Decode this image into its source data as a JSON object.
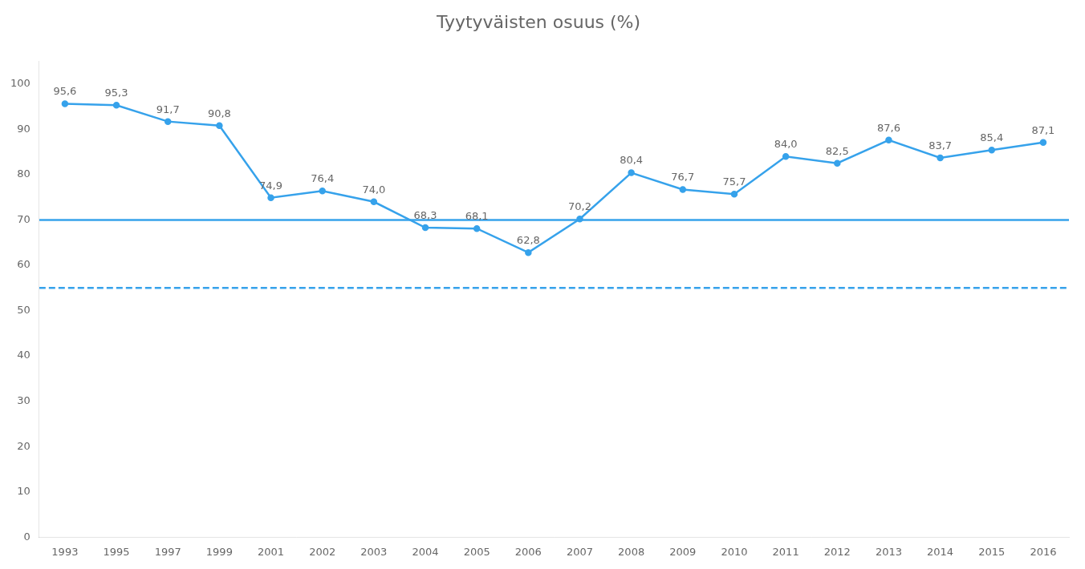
{
  "chart_data": {
    "type": "line",
    "title": "Tyytyväisten osuus (%)",
    "categories": [
      "1993",
      "1995",
      "1997",
      "1999",
      "2001",
      "2002",
      "2003",
      "2004",
      "2005",
      "2006",
      "2007",
      "2008",
      "2009",
      "2010",
      "2011",
      "2012",
      "2013",
      "2014",
      "2015",
      "2016"
    ],
    "values": [
      95.6,
      95.3,
      91.7,
      90.8,
      74.9,
      76.4,
      74.0,
      68.3,
      68.1,
      62.8,
      70.2,
      80.4,
      76.7,
      75.7,
      84.0,
      82.5,
      87.6,
      83.7,
      85.4,
      87.1
    ],
    "value_labels": [
      "95,6",
      "95,3",
      "91,7",
      "90,8",
      "74,9",
      "76,4",
      "74,0",
      "68,3",
      "68,1",
      "62,8",
      "70,2",
      "80,4",
      "76,7",
      "75,7",
      "84,0",
      "82,5",
      "87,6",
      "83,7",
      "85,4",
      "87,1"
    ],
    "data_labels": true,
    "color": "#36a2eb",
    "ylim": [
      0,
      105
    ],
    "yticks": [
      0,
      10,
      20,
      30,
      40,
      50,
      60,
      70,
      80,
      90,
      100
    ],
    "grid": false,
    "reference_lines": [
      {
        "y": 70,
        "line_style": "solid"
      },
      {
        "y": 55,
        "line_style": "dashed"
      }
    ]
  }
}
